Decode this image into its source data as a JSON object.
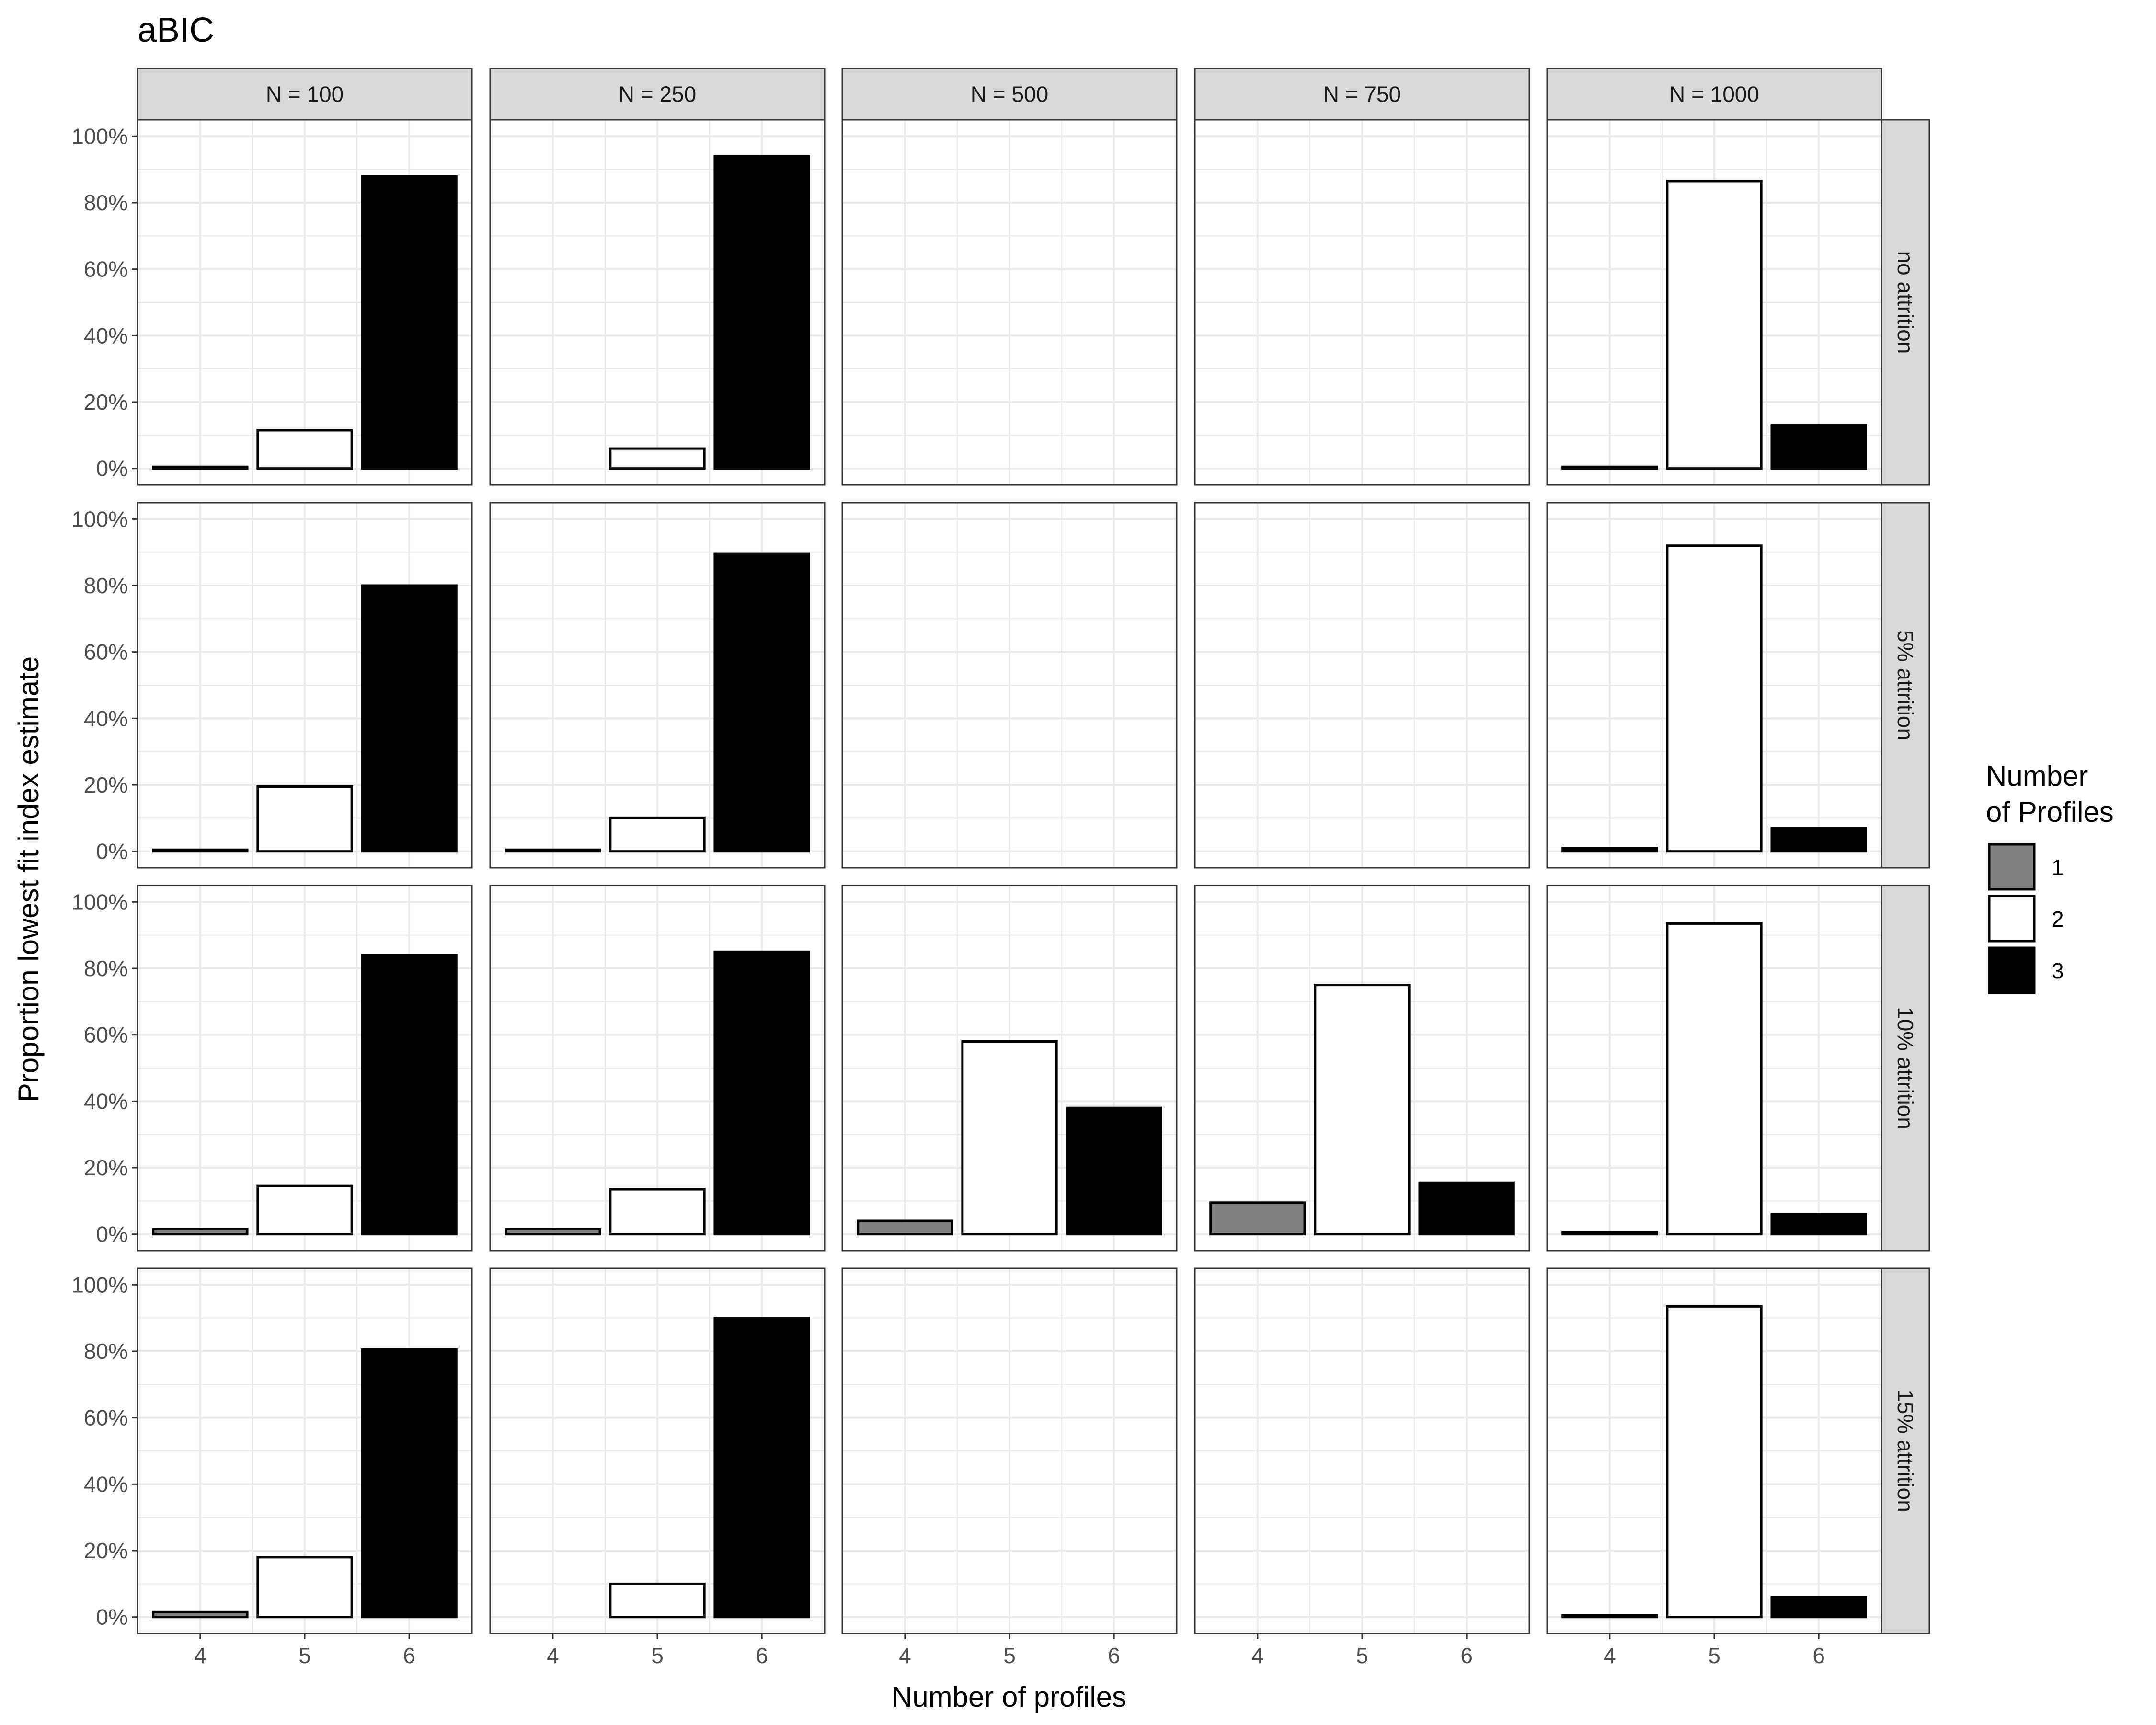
{
  "chart_data": {
    "type": "bar",
    "title": "aBIC",
    "xlabel": "Number of profiles",
    "ylabel": "Proportion lowest fit index estimate",
    "x_categories": [
      "4",
      "5",
      "6"
    ],
    "ylim": [
      0,
      1
    ],
    "y_ticks": [
      "0%",
      "20%",
      "40%",
      "60%",
      "80%",
      "100%"
    ],
    "grid": true,
    "legend": {
      "title_line1": "Number",
      "title_line2": "of Profiles",
      "placement": "right",
      "entries": [
        {
          "label": "1",
          "color": "#808080"
        },
        {
          "label": "2",
          "color": "#ffffff"
        },
        {
          "label": "3",
          "color": "#000000"
        }
      ]
    },
    "columns": [
      "N = 100",
      "N = 250",
      "N = 500",
      "N = 750",
      "N = 1000"
    ],
    "rows": [
      "no attrition",
      "5% attrition",
      "10% attrition",
      "15% attrition"
    ],
    "panels": [
      [
        {
          "x": 4,
          "y": 0.005,
          "fill": "3"
        },
        {
          "x": 5,
          "y": 0.115,
          "fill": "2"
        },
        {
          "x": 6,
          "y": 0.88,
          "fill": "3"
        }
      ],
      [
        {
          "x": 5,
          "y": 0.06,
          "fill": "2"
        },
        {
          "x": 6,
          "y": 0.94,
          "fill": "3"
        }
      ],
      [],
      [],
      [
        {
          "x": 4,
          "y": 0.005,
          "fill": "3"
        },
        {
          "x": 5,
          "y": 0.865,
          "fill": "2"
        },
        {
          "x": 6,
          "y": 0.13,
          "fill": "3"
        }
      ],
      [
        {
          "x": 4,
          "y": 0.005,
          "fill": "3"
        },
        {
          "x": 5,
          "y": 0.195,
          "fill": "2"
        },
        {
          "x": 6,
          "y": 0.8,
          "fill": "3"
        }
      ],
      [
        {
          "x": 4,
          "y": 0.005,
          "fill": "3"
        },
        {
          "x": 5,
          "y": 0.1,
          "fill": "2"
        },
        {
          "x": 6,
          "y": 0.895,
          "fill": "3"
        }
      ],
      [],
      [],
      [
        {
          "x": 4,
          "y": 0.01,
          "fill": "3"
        },
        {
          "x": 5,
          "y": 0.92,
          "fill": "2"
        },
        {
          "x": 6,
          "y": 0.07,
          "fill": "3"
        }
      ],
      [
        {
          "x": 4,
          "y": 0.015,
          "fill": "1"
        },
        {
          "x": 5,
          "y": 0.145,
          "fill": "2"
        },
        {
          "x": 6,
          "y": 0.84,
          "fill": "3"
        }
      ],
      [
        {
          "x": 4,
          "y": 0.015,
          "fill": "1"
        },
        {
          "x": 5,
          "y": 0.135,
          "fill": "2"
        },
        {
          "x": 6,
          "y": 0.85,
          "fill": "3"
        }
      ],
      [
        {
          "x": 4,
          "y": 0.04,
          "fill": "1"
        },
        {
          "x": 5,
          "y": 0.58,
          "fill": "2"
        },
        {
          "x": 6,
          "y": 0.38,
          "fill": "3"
        }
      ],
      [
        {
          "x": 4,
          "y": 0.095,
          "fill": "1"
        },
        {
          "x": 5,
          "y": 0.75,
          "fill": "2"
        },
        {
          "x": 6,
          "y": 0.155,
          "fill": "3"
        }
      ],
      [
        {
          "x": 4,
          "y": 0.005,
          "fill": "3"
        },
        {
          "x": 5,
          "y": 0.935,
          "fill": "2"
        },
        {
          "x": 6,
          "y": 0.06,
          "fill": "3"
        }
      ],
      [
        {
          "x": 4,
          "y": 0.015,
          "fill": "1"
        },
        {
          "x": 5,
          "y": 0.18,
          "fill": "2"
        },
        {
          "x": 6,
          "y": 0.805,
          "fill": "3"
        }
      ],
      [
        {
          "x": 5,
          "y": 0.1,
          "fill": "2"
        },
        {
          "x": 6,
          "y": 0.9,
          "fill": "3"
        }
      ],
      [],
      [],
      [
        {
          "x": 4,
          "y": 0.005,
          "fill": "3"
        },
        {
          "x": 5,
          "y": 0.935,
          "fill": "2"
        },
        {
          "x": 6,
          "y": 0.06,
          "fill": "3"
        }
      ]
    ]
  }
}
